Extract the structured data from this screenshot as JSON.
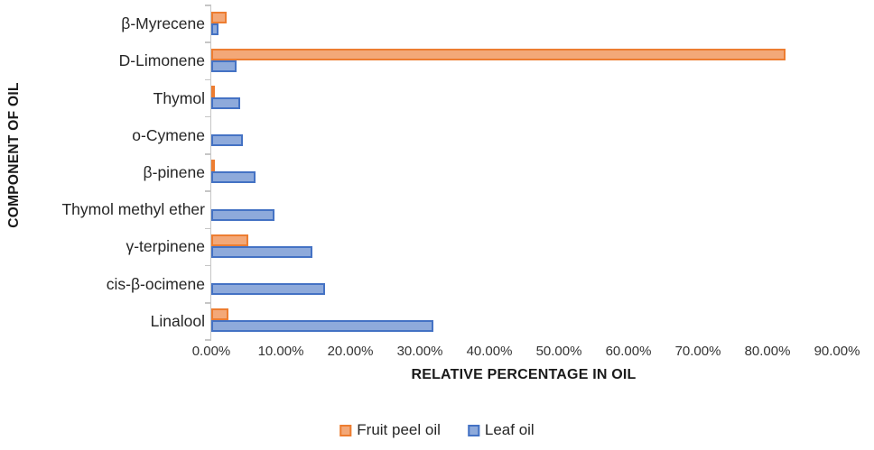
{
  "chart_data": {
    "type": "bar",
    "orientation": "horizontal",
    "title": "",
    "xlabel": "RELATIVE PERCENTAGE IN OIL",
    "ylabel": "COMPONENT OF OIL",
    "categories": [
      "β-Myrecene",
      "D-Limonene",
      "Thymol",
      "o-Cymene",
      "β-pinene",
      "Thymol methyl ether",
      "γ-terpinene",
      "cis-β-ocimene",
      "Linalool"
    ],
    "series": [
      {
        "name": "Fruit peel oil",
        "fill_color": "#F3A878",
        "border_color": "#ED7D31",
        "values": [
          2.2,
          82.6,
          0.5,
          0,
          0.5,
          0,
          5.3,
          0,
          2.5
        ]
      },
      {
        "name": "Leaf oil",
        "fill_color": "#8EAADB",
        "border_color": "#4472C4",
        "values": [
          1.1,
          3.6,
          4.2,
          4.5,
          6.3,
          9.1,
          14.5,
          16.4,
          32
        ]
      }
    ],
    "x_ticks": [
      "0.00%",
      "10.00%",
      "20.00%",
      "30.00%",
      "40.00%",
      "50.00%",
      "60.00%",
      "70.00%",
      "80.00%",
      "90.00%"
    ],
    "xlim": [
      0,
      90
    ],
    "grid": false,
    "legend_position": "bottom",
    "axis_color": "#C6C6C6"
  }
}
